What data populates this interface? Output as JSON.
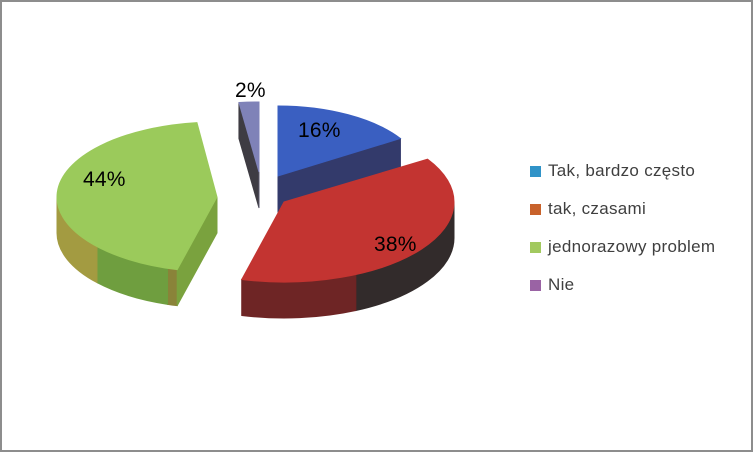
{
  "chart_data": {
    "type": "pie",
    "style": "3d-exploded",
    "title": "",
    "legend_position": "right",
    "total": 100,
    "slices": [
      {
        "label": "Tak, bardzo często",
        "value": 16,
        "pct_label": "16%",
        "color_top": "#3a5fc1",
        "color_side": "#333a6b",
        "legend_color": "#3093c8"
      },
      {
        "label": "tak, czasami",
        "value": 38,
        "pct_label": "38%",
        "color_top": "#c33431",
        "color_side_right": "#322b2b",
        "color_side_front": "#6e2525",
        "legend_color": "#c8622b"
      },
      {
        "label": "jednorazowy problem",
        "value": 44,
        "pct_label": "44%",
        "color_top": "#9bca5b",
        "color_side_front": "#6f9e3f",
        "color_side_left": "#a39b41",
        "color_seam": "#8a8339",
        "color_cut": "#7aa23e",
        "legend_color": "#a2c95f"
      },
      {
        "label": "Nie",
        "value": 2,
        "pct_label": "2%",
        "color_top": "#7f82b8",
        "color_side": "#3e3c43",
        "color_edge": "#55536a",
        "legend_color": "#9a63a4"
      }
    ]
  }
}
